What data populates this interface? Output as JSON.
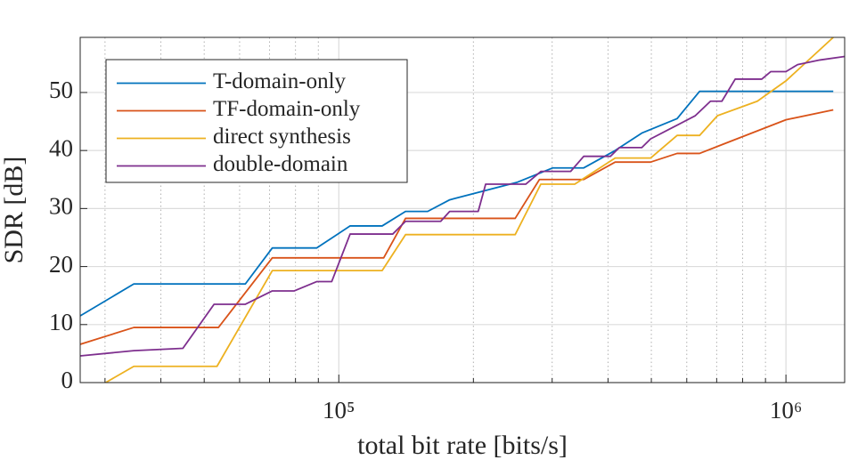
{
  "chart_data": {
    "type": "line",
    "xlabel": "total bit rate [bits/s]",
    "ylabel": "SDR [dB]",
    "xscale": "log",
    "xlim": [
      26400,
      1353000
    ],
    "ylim": [
      0,
      59.5
    ],
    "xticks": [
      {
        "value": 100000,
        "label": "10⁵"
      },
      {
        "value": 1000000,
        "label": "10⁶"
      }
    ],
    "yticks": [
      0,
      10,
      20,
      30,
      40,
      50
    ],
    "grid": true,
    "minor_grid": true,
    "legend": "upper-left",
    "series": [
      {
        "name": "T-domain-only",
        "color": "#0072BD",
        "x": [
          26400,
          34800,
          61800,
          71000,
          89200,
          106000,
          125000,
          141000,
          158000,
          177000,
          250000,
          301000,
          353000,
          415000,
          476000,
          571000,
          641000,
          1276000
        ],
        "values": [
          11.5,
          17,
          17,
          23.2,
          23.2,
          27,
          27,
          29.5,
          29.5,
          31.5,
          34.5,
          37,
          37,
          40,
          43,
          45.5,
          50.2,
          50.2
        ]
      },
      {
        "name": "TF-domain-only",
        "color": "#D95319",
        "x": [
          26400,
          34800,
          53800,
          71000,
          126000,
          141000,
          248000,
          281000,
          353000,
          415000,
          498000,
          571000,
          641000,
          719000,
          1000000,
          1276000
        ],
        "values": [
          6.6,
          9.5,
          9.5,
          21.5,
          21.5,
          28.3,
          28.3,
          35,
          35,
          38,
          38,
          39.5,
          39.5,
          41,
          45.3,
          47
        ]
      },
      {
        "name": "direct synthesis",
        "color": "#EDB120",
        "x": [
          30100,
          34800,
          53400,
          71000,
          125000,
          141000,
          248000,
          283000,
          337000,
          415000,
          498000,
          571000,
          641000,
          703000,
          863000,
          1000000,
          1276000
        ],
        "values": [
          0,
          2.8,
          2.8,
          19.3,
          19.3,
          25.5,
          25.5,
          34.2,
          34.2,
          38.7,
          38.7,
          42.6,
          42.6,
          46,
          48.5,
          52,
          59.5
        ]
      },
      {
        "name": "double-domain",
        "color": "#7E2F8E",
        "x": [
          26400,
          34800,
          44800,
          52600,
          61800,
          71000,
          79500,
          89200,
          96400,
          106000,
          132000,
          141000,
          169000,
          177000,
          205000,
          213000,
          262000,
          283000,
          330000,
          353000,
          405000,
          424000,
          476000,
          498000,
          559000,
          627000,
          678000,
          719000,
          770000,
          883000,
          925000,
          1000000,
          1062000,
          1191000,
          1353000
        ],
        "values": [
          4.6,
          5.5,
          5.9,
          13.5,
          13.5,
          15.8,
          15.8,
          17.4,
          17.4,
          25.6,
          25.6,
          27.8,
          27.8,
          29.5,
          29.5,
          34.2,
          34.2,
          36.4,
          36.4,
          39,
          39,
          40.5,
          40.5,
          42,
          44,
          46,
          48.5,
          48.5,
          52.3,
          52.3,
          53.6,
          53.6,
          54.8,
          55.6,
          56.2
        ]
      }
    ]
  }
}
